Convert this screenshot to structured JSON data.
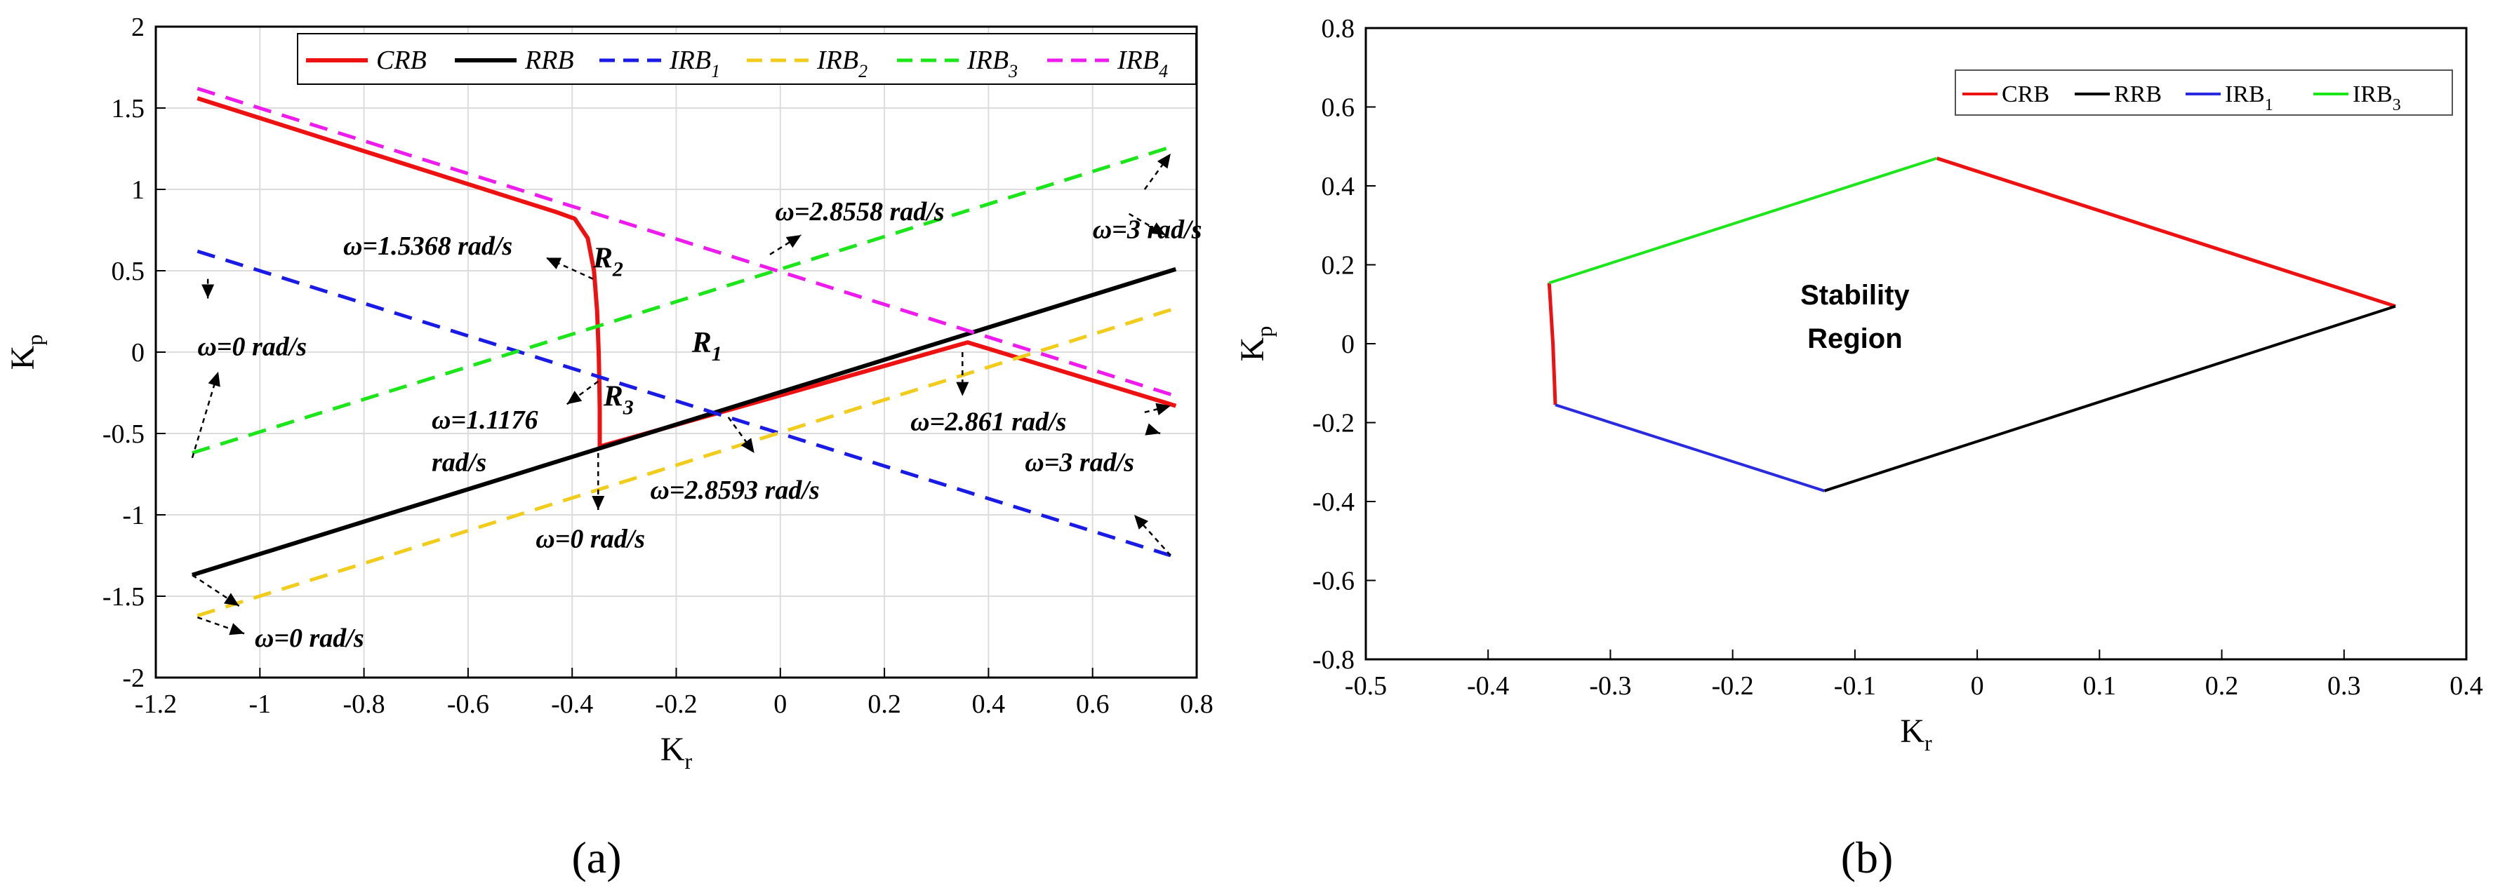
{
  "chart_data": [
    {
      "type": "line",
      "panel_label": "(a)",
      "xlabel": "K",
      "xlabel_sub": "r",
      "ylabel": "K",
      "ylabel_sub": "p",
      "xlim": [
        -1.2,
        0.8
      ],
      "ylim": [
        -2,
        2
      ],
      "xticks": [
        -1.2,
        -1,
        -0.8,
        -0.6,
        -0.4,
        -0.2,
        0,
        0.2,
        0.4,
        0.6,
        0.8
      ],
      "yticks": [
        -2,
        -1.5,
        -1,
        -0.5,
        0,
        0.5,
        1,
        1.5,
        2
      ],
      "xtick_labels": [
        "-1.2",
        "-1",
        "-0.8",
        "-0.6",
        "-0.4",
        "-0.2",
        "0",
        "0.2",
        "0.4",
        "0.6",
        "0.8"
      ],
      "ytick_labels": [
        "-2",
        "-1.5",
        "-1",
        "-0.5",
        "0",
        "0.5",
        "1",
        "1.5",
        "2"
      ],
      "grid": true,
      "legend_position": "top-right",
      "series": [
        {
          "name": "CRB",
          "sub": "",
          "color": "#ee1111",
          "dash": "",
          "width": 6,
          "x": [
            -1.12,
            -0.43,
            -0.395,
            -0.37,
            -0.358,
            -0.352,
            -0.349,
            -0.348,
            -0.347,
            -0.347,
            0.36,
            0.76
          ],
          "y": [
            1.56,
            0.86,
            0.82,
            0.7,
            0.5,
            0.25,
            0.0,
            -0.15,
            -0.35,
            -0.58,
            0.06,
            -0.33
          ]
        },
        {
          "name": "RRB",
          "sub": "",
          "color": "#000000",
          "dash": "",
          "width": 6,
          "x": [
            -1.13,
            0.76
          ],
          "y": [
            -1.37,
            0.51
          ]
        },
        {
          "name": "IRB",
          "sub": "1",
          "color": "#1a1ae6",
          "dash": "26,16",
          "width": 5,
          "x": [
            -1.12,
            0.75
          ],
          "y": [
            0.62,
            -1.25
          ]
        },
        {
          "name": "IRB",
          "sub": "2",
          "color": "#f2cc1a",
          "dash": "26,16",
          "width": 5,
          "x": [
            -1.12,
            0.76
          ],
          "y": [
            -1.62,
            0.27
          ]
        },
        {
          "name": "IRB",
          "sub": "3",
          "color": "#1ae61a",
          "dash": "26,16",
          "width": 5,
          "x": [
            -1.13,
            0.76
          ],
          "y": [
            -0.62,
            1.27
          ]
        },
        {
          "name": "IRB",
          "sub": "4",
          "color": "#ee1aee",
          "dash": "26,16",
          "width": 5,
          "x": [
            -1.12,
            0.76
          ],
          "y": [
            1.62,
            -0.27
          ]
        }
      ],
      "annotations": [
        {
          "text": "ω=1.5368 rad/s",
          "x": -0.84,
          "y": 0.6
        },
        {
          "text": "ω=2.8558 rad/s",
          "x": -0.01,
          "y": 0.81
        },
        {
          "text": "ω=3 rad/s",
          "x": 0.6,
          "y": 0.7
        },
        {
          "text": "ω=0 rad/s",
          "x": -1.12,
          "y": -0.02
        },
        {
          "text": "ω=1.1176",
          "x": -0.67,
          "y": -0.47
        },
        {
          "text": "rad/s",
          "x": -0.67,
          "y": -0.73
        },
        {
          "text": "ω=2.861 rad/s",
          "x": 0.25,
          "y": -0.48
        },
        {
          "text": "ω=3 rad/s",
          "x": 0.47,
          "y": -0.73
        },
        {
          "text": "ω=2.8593 rad/s",
          "x": -0.25,
          "y": -0.9
        },
        {
          "text": "ω=0 rad/s",
          "x": -0.47,
          "y": -1.2
        },
        {
          "text": "ω=0 rad/s",
          "x": -1.01,
          "y": -1.81
        }
      ],
      "region_labels": [
        {
          "text": "R",
          "sub": "2",
          "x": -0.36,
          "y": 0.52
        },
        {
          "text": "R",
          "sub": "1",
          "x": -0.17,
          "y": 0.0
        },
        {
          "text": "R",
          "sub": "3",
          "x": -0.34,
          "y": -0.33
        }
      ],
      "arrows": [
        {
          "from": [
            -0.36,
            0.45
          ],
          "to": [
            -0.45,
            0.58
          ]
        },
        {
          "from": [
            -0.02,
            0.6
          ],
          "to": [
            0.04,
            0.72
          ]
        },
        {
          "from": [
            0.7,
            1.0
          ],
          "to": [
            0.75,
            1.22
          ]
        },
        {
          "from": [
            0.67,
            0.85
          ],
          "to": [
            0.74,
            0.72
          ]
        },
        {
          "from": [
            -1.1,
            0.45
          ],
          "to": [
            -1.1,
            0.33
          ]
        },
        {
          "from": [
            -1.13,
            -0.65
          ],
          "to": [
            -1.08,
            -0.12
          ]
        },
        {
          "from": [
            -0.35,
            -0.18
          ],
          "to": [
            -0.41,
            -0.32
          ]
        },
        {
          "from": [
            0.35,
            0.0
          ],
          "to": [
            0.35,
            -0.27
          ]
        },
        {
          "from": [
            0.7,
            -0.37
          ],
          "to": [
            0.75,
            -0.33
          ]
        },
        {
          "from": [
            0.71,
            -0.48
          ],
          "to": [
            0.73,
            -0.5
          ]
        },
        {
          "from": [
            0.75,
            -1.25
          ],
          "to": [
            0.68,
            -1.0
          ]
        },
        {
          "from": [
            -0.1,
            -0.4
          ],
          "to": [
            -0.05,
            -0.62
          ]
        },
        {
          "from": [
            -0.35,
            -0.62
          ],
          "to": [
            -0.35,
            -0.97
          ]
        },
        {
          "from": [
            -1.13,
            -1.37
          ],
          "to": [
            -1.04,
            -1.56
          ]
        },
        {
          "from": [
            -1.12,
            -1.63
          ],
          "to": [
            -1.03,
            -1.73
          ]
        }
      ]
    },
    {
      "type": "line",
      "panel_label": "(b)",
      "xlabel": "K",
      "xlabel_sub": "r",
      "ylabel": "K",
      "ylabel_sub": "p",
      "xlim": [
        -0.5,
        0.4
      ],
      "ylim": [
        -0.8,
        0.8
      ],
      "xticks": [
        -0.5,
        -0.4,
        -0.3,
        -0.2,
        -0.1,
        0,
        0.1,
        0.2,
        0.3,
        0.4
      ],
      "yticks": [
        -0.8,
        -0.6,
        -0.4,
        -0.2,
        0,
        0.2,
        0.4,
        0.6,
        0.8
      ],
      "xtick_labels": [
        "-0.5",
        "-0.4",
        "-0.3",
        "-0.2",
        "-0.1",
        "0",
        "0.1",
        "0.2",
        "0.3",
        "0.4"
      ],
      "ytick_labels": [
        "-0.8",
        "-0.6",
        "-0.4",
        "-0.2",
        "0",
        "0.2",
        "0.4",
        "0.6",
        "0.8"
      ],
      "grid": false,
      "legend_position": "top-right",
      "series": [
        {
          "name": "CRB",
          "sub": "",
          "color": "#ee1111",
          "dash": "",
          "width": 5,
          "x": [
            -0.033,
            0.342,
            -0.35,
            -0.347,
            -0.345
          ],
          "y": [
            0.47,
            0.095,
            0.154,
            0.0,
            -0.155
          ],
          "segments": [
            [
              0,
              1
            ],
            [
              2,
              3,
              4
            ]
          ]
        },
        {
          "name": "RRB",
          "sub": "",
          "color": "#000000",
          "dash": "",
          "width": 4,
          "x": [
            -0.125,
            0.342
          ],
          "y": [
            -0.373,
            0.095
          ]
        },
        {
          "name": "IRB",
          "sub": "1",
          "color": "#2a2ae0",
          "dash": "",
          "width": 4,
          "x": [
            -0.345,
            -0.125
          ],
          "y": [
            -0.155,
            -0.373
          ]
        },
        {
          "name": "IRB",
          "sub": "3",
          "color": "#1ae61a",
          "dash": "",
          "width": 4,
          "x": [
            -0.35,
            -0.033
          ],
          "y": [
            0.154,
            0.47
          ]
        }
      ],
      "region_text": [
        "Stability",
        "Region"
      ],
      "region_text_pos": {
        "x": -0.1,
        "y": 0.1
      }
    }
  ]
}
